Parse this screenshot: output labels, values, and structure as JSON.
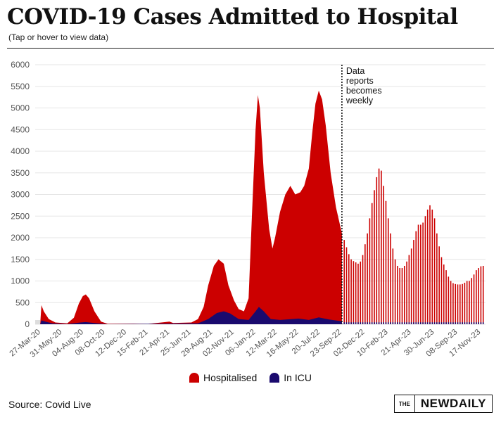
{
  "title": "COVID-19 Cases Admitted to Hospital",
  "subtitle": "(Tap or hover to view data)",
  "source": "Source: Covid Live",
  "logo": {
    "small": "THE",
    "main": "NEWDAILY"
  },
  "annotation": [
    "Data",
    "reports",
    "becomes",
    "weekly"
  ],
  "colors": {
    "hospitalised": "#cc0000",
    "icu": "#1a0a6e"
  },
  "chart_data": {
    "type": "area",
    "ylim": [
      0,
      6000
    ],
    "yticks": [
      0,
      500,
      1000,
      1500,
      2000,
      2500,
      3000,
      3500,
      4000,
      4500,
      5000,
      5500,
      6000
    ],
    "xlim": [
      "2020-03-10",
      "2023-12-01"
    ],
    "xticks": [
      "27-Mar-20",
      "31-May-20",
      "04-Aug-20",
      "08-Oct-20",
      "12-Dec-20",
      "15-Feb-21",
      "21-Apr-21",
      "25-Jun-21",
      "29-Aug-21",
      "02-Nov-21",
      "06-Jan-22",
      "12-Mar-22",
      "16-May-22",
      "20-Jul-22",
      "23-Sep-22",
      "02-Dec-22",
      "10-Feb-23",
      "21-Apr-23",
      "30-Jun-23",
      "08-Sep-23",
      "17-Nov-23"
    ],
    "annotation_date": "2022-09-23",
    "grid": true,
    "legend_position": "bottom",
    "series": [
      {
        "name": "Hospitalised",
        "daily": [
          [
            "2020-03-10",
            0
          ],
          [
            "2020-03-25",
            0
          ],
          [
            "2020-03-29",
            440
          ],
          [
            "2020-04-05",
            300
          ],
          [
            "2020-04-20",
            120
          ],
          [
            "2020-05-10",
            40
          ],
          [
            "2020-06-15",
            20
          ],
          [
            "2020-07-05",
            150
          ],
          [
            "2020-07-20",
            480
          ],
          [
            "2020-08-01",
            650
          ],
          [
            "2020-08-10",
            690
          ],
          [
            "2020-08-20",
            600
          ],
          [
            "2020-09-05",
            300
          ],
          [
            "2020-09-25",
            60
          ],
          [
            "2020-10-15",
            10
          ],
          [
            "2021-01-01",
            12
          ],
          [
            "2021-02-15",
            8
          ],
          [
            "2021-04-20",
            60
          ],
          [
            "2021-05-01",
            30
          ],
          [
            "2021-06-25",
            40
          ],
          [
            "2021-07-15",
            120
          ],
          [
            "2021-08-01",
            400
          ],
          [
            "2021-08-15",
            900
          ],
          [
            "2021-09-01",
            1350
          ],
          [
            "2021-09-15",
            1500
          ],
          [
            "2021-10-01",
            1400
          ],
          [
            "2021-10-15",
            900
          ],
          [
            "2021-11-01",
            550
          ],
          [
            "2021-11-15",
            350
          ],
          [
            "2021-12-01",
            300
          ],
          [
            "2021-12-15",
            600
          ],
          [
            "2021-12-25",
            2500
          ],
          [
            "2022-01-05",
            4500
          ],
          [
            "2022-01-12",
            5300
          ],
          [
            "2022-01-18",
            5000
          ],
          [
            "2022-01-30",
            3500
          ],
          [
            "2022-02-15",
            2200
          ],
          [
            "2022-02-25",
            1750
          ],
          [
            "2022-03-05",
            2000
          ],
          [
            "2022-03-20",
            2600
          ],
          [
            "2022-04-05",
            3000
          ],
          [
            "2022-04-20",
            3200
          ],
          [
            "2022-05-05",
            3000
          ],
          [
            "2022-05-20",
            3050
          ],
          [
            "2022-06-01",
            3200
          ],
          [
            "2022-06-15",
            3600
          ],
          [
            "2022-06-25",
            4400
          ],
          [
            "2022-07-05",
            5100
          ],
          [
            "2022-07-15",
            5400
          ],
          [
            "2022-07-25",
            5200
          ],
          [
            "2022-08-05",
            4600
          ],
          [
            "2022-08-20",
            3500
          ],
          [
            "2022-09-05",
            2700
          ],
          [
            "2022-09-23",
            2100
          ]
        ],
        "weekly": [
          [
            "2022-09-30",
            1950
          ],
          [
            "2022-10-07",
            1780
          ],
          [
            "2022-10-14",
            1620
          ],
          [
            "2022-10-21",
            1500
          ],
          [
            "2022-10-28",
            1460
          ],
          [
            "2022-11-04",
            1430
          ],
          [
            "2022-11-11",
            1400
          ],
          [
            "2022-11-18",
            1450
          ],
          [
            "2022-11-25",
            1600
          ],
          [
            "2022-12-02",
            1850
          ],
          [
            "2022-12-09",
            2100
          ],
          [
            "2022-12-16",
            2450
          ],
          [
            "2022-12-23",
            2800
          ],
          [
            "2022-12-30",
            3100
          ],
          [
            "2023-01-06",
            3400
          ],
          [
            "2023-01-13",
            3600
          ],
          [
            "2023-01-20",
            3550
          ],
          [
            "2023-01-27",
            3200
          ],
          [
            "2023-02-03",
            2850
          ],
          [
            "2023-02-10",
            2450
          ],
          [
            "2023-02-17",
            2100
          ],
          [
            "2023-02-24",
            1750
          ],
          [
            "2023-03-03",
            1500
          ],
          [
            "2023-03-10",
            1350
          ],
          [
            "2023-03-17",
            1300
          ],
          [
            "2023-03-24",
            1300
          ],
          [
            "2023-03-31",
            1350
          ],
          [
            "2023-04-07",
            1450
          ],
          [
            "2023-04-14",
            1600
          ],
          [
            "2023-04-21",
            1750
          ],
          [
            "2023-04-28",
            1950
          ],
          [
            "2023-05-05",
            2150
          ],
          [
            "2023-05-12",
            2300
          ],
          [
            "2023-05-19",
            2300
          ],
          [
            "2023-05-26",
            2350
          ],
          [
            "2023-06-02",
            2500
          ],
          [
            "2023-06-09",
            2650
          ],
          [
            "2023-06-16",
            2750
          ],
          [
            "2023-06-23",
            2650
          ],
          [
            "2023-06-30",
            2450
          ],
          [
            "2023-07-07",
            2100
          ],
          [
            "2023-07-14",
            1800
          ],
          [
            "2023-07-21",
            1550
          ],
          [
            "2023-07-28",
            1380
          ],
          [
            "2023-08-04",
            1250
          ],
          [
            "2023-08-11",
            1100
          ],
          [
            "2023-08-18",
            1000
          ],
          [
            "2023-08-25",
            950
          ],
          [
            "2023-09-01",
            930
          ],
          [
            "2023-09-08",
            920
          ],
          [
            "2023-09-15",
            920
          ],
          [
            "2023-09-22",
            930
          ],
          [
            "2023-09-29",
            960
          ],
          [
            "2023-10-06",
            1000
          ],
          [
            "2023-10-13",
            1000
          ],
          [
            "2023-10-20",
            1070
          ],
          [
            "2023-10-27",
            1150
          ],
          [
            "2023-11-03",
            1250
          ],
          [
            "2023-11-10",
            1300
          ],
          [
            "2023-11-17",
            1340
          ],
          [
            "2023-11-24",
            1350
          ]
        ]
      },
      {
        "name": "In ICU",
        "daily": [
          [
            "2020-03-10",
            0
          ],
          [
            "2020-03-25",
            0
          ],
          [
            "2020-03-29",
            90
          ],
          [
            "2020-04-10",
            60
          ],
          [
            "2020-05-01",
            20
          ],
          [
            "2020-06-15",
            5
          ],
          [
            "2020-07-25",
            40
          ],
          [
            "2020-08-10",
            50
          ],
          [
            "2020-09-15",
            20
          ],
          [
            "2020-10-15",
            2
          ],
          [
            "2021-07-15",
            20
          ],
          [
            "2021-08-15",
            120
          ],
          [
            "2021-09-10",
            260
          ],
          [
            "2021-10-01",
            300
          ],
          [
            "2021-10-20",
            250
          ],
          [
            "2021-11-15",
            120
          ],
          [
            "2021-12-15",
            100
          ],
          [
            "2022-01-05",
            300
          ],
          [
            "2022-01-15",
            400
          ],
          [
            "2022-01-30",
            300
          ],
          [
            "2022-02-20",
            120
          ],
          [
            "2022-03-20",
            100
          ],
          [
            "2022-05-15",
            130
          ],
          [
            "2022-06-15",
            100
          ],
          [
            "2022-07-15",
            160
          ],
          [
            "2022-08-15",
            110
          ],
          [
            "2022-09-23",
            70
          ]
        ],
        "weekly_level": 45
      }
    ]
  }
}
